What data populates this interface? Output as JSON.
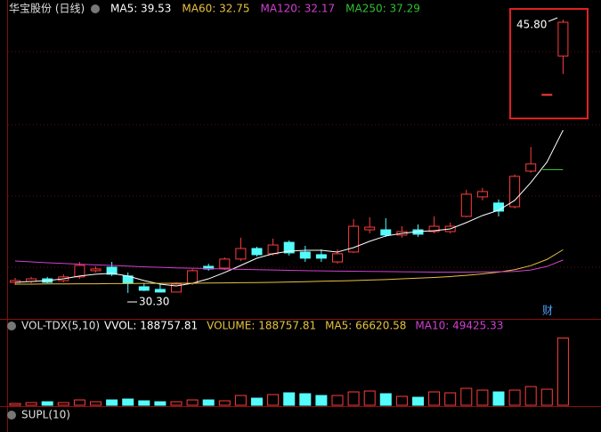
{
  "chart_data": [
    {
      "type": "candlestick",
      "title": "华宝股份 (日线)",
      "up_color": "#ff3c3c",
      "down_color": "#54fcfc",
      "ylim": [
        28.98,
        46.66
      ],
      "open": [
        30.9,
        30.95,
        31.1,
        31.0,
        31.21,
        31.56,
        31.76,
        31.26,
        30.65,
        30.5,
        30.35,
        30.85,
        31.81,
        31.71,
        32.22,
        32.82,
        32.52,
        33.17,
        32.62,
        32.47,
        32.06,
        32.62,
        33.88,
        33.88,
        33.58,
        33.88,
        33.78,
        33.78,
        34.64,
        35.75,
        35.4,
        35.19,
        37.21,
        41.56,
        43.73
      ],
      "high": [
        31.15,
        31.21,
        31.21,
        31.36,
        32.06,
        31.81,
        32.06,
        31.46,
        30.85,
        30.85,
        30.9,
        31.66,
        31.96,
        32.32,
        33.43,
        32.92,
        33.38,
        33.28,
        32.97,
        32.77,
        32.77,
        34.49,
        34.59,
        34.54,
        34.08,
        34.18,
        34.64,
        34.29,
        36.15,
        36.26,
        35.6,
        37.01,
        38.58,
        41.56,
        45.8
      ],
      "low": [
        30.75,
        30.85,
        30.85,
        30.9,
        31.1,
        31.46,
        31.26,
        30.3,
        30.4,
        30.32,
        30.33,
        30.75,
        31.56,
        31.61,
        32.11,
        32.37,
        32.42,
        32.42,
        32.06,
        32.06,
        31.96,
        32.57,
        33.68,
        33.48,
        33.43,
        33.48,
        33.68,
        33.68,
        34.59,
        35.55,
        34.64,
        35.09,
        37.11,
        41.56,
        42.72
      ],
      "close": [
        31.0,
        31.1,
        30.9,
        31.21,
        31.86,
        31.66,
        31.36,
        30.85,
        30.45,
        30.35,
        30.8,
        31.56,
        31.66,
        32.22,
        32.82,
        32.47,
        33.02,
        32.57,
        32.27,
        32.27,
        32.52,
        34.08,
        34.03,
        33.58,
        33.78,
        33.63,
        34.08,
        34.08,
        35.9,
        36.05,
        34.94,
        36.91,
        37.62,
        41.56,
        45.65
      ],
      "lines": [
        {
          "name": "MA5: 39.53",
          "color": "#ffffff",
          "values": [
            30.9,
            30.95,
            31.0,
            31.1,
            31.26,
            31.36,
            31.41,
            31.26,
            31.0,
            30.8,
            30.7,
            30.85,
            31.1,
            31.46,
            31.86,
            32.27,
            32.52,
            32.67,
            32.72,
            32.72,
            32.62,
            32.87,
            33.23,
            33.53,
            33.68,
            33.78,
            33.83,
            33.93,
            34.29,
            34.69,
            34.99,
            35.55,
            36.56,
            37.72,
            39.53
          ]
        },
        {
          "name": "MA60: 32.75",
          "color": "#e8c23f",
          "values": [
            30.8,
            30.8,
            30.81,
            30.81,
            30.82,
            30.82,
            30.83,
            30.83,
            30.84,
            30.84,
            30.85,
            30.85,
            30.86,
            30.87,
            30.88,
            30.89,
            30.9,
            30.92,
            30.94,
            30.96,
            30.98,
            31.0,
            31.03,
            31.06,
            31.1,
            31.14,
            31.18,
            31.23,
            31.3,
            31.38,
            31.48,
            31.62,
            31.85,
            32.2,
            32.75
          ]
        },
        {
          "name": "MA120: 32.17",
          "color": "#d040d0",
          "values": [
            32.11,
            32.06,
            32.01,
            31.97,
            31.93,
            31.89,
            31.86,
            31.82,
            31.78,
            31.75,
            31.72,
            31.7,
            31.68,
            31.66,
            31.64,
            31.62,
            31.6,
            31.58,
            31.56,
            31.55,
            31.54,
            31.53,
            31.52,
            31.51,
            31.5,
            31.49,
            31.48,
            31.48,
            31.48,
            31.49,
            31.5,
            31.52,
            31.6,
            31.8,
            32.17
          ]
        },
        {
          "name": "MA250: 37.29",
          "color": "#30c030",
          "values": [
            null,
            null,
            null,
            null,
            null,
            null,
            null,
            null,
            null,
            null,
            null,
            null,
            null,
            null,
            null,
            null,
            null,
            null,
            null,
            null,
            null,
            null,
            null,
            null,
            null,
            null,
            null,
            null,
            null,
            null,
            null,
            null,
            null,
            37.29,
            37.29
          ]
        }
      ],
      "max_label": "45.80",
      "min_label": "30.30",
      "marker": "财"
    },
    {
      "type": "bar",
      "title": "VOL-TDX(5,10)",
      "ylim": [
        0,
        200000
      ],
      "legend": [
        {
          "name": "VVOL: 188757.81",
          "color": "#ffffff"
        },
        {
          "name": "VOLUME: 188757.81",
          "color": "#e8c23f"
        },
        {
          "name": "MA5: 66620.58",
          "color": "#e8c23f"
        },
        {
          "name": "MA10: 49425.33",
          "color": "#d040d0"
        }
      ],
      "values": [
        5000,
        7500,
        10000,
        7500,
        15000,
        10000,
        15000,
        17500,
        12500,
        10000,
        10000,
        15000,
        15000,
        12500,
        27500,
        20000,
        30000,
        35000,
        32500,
        27500,
        27500,
        37500,
        40000,
        32500,
        25000,
        22500,
        37500,
        35000,
        47500,
        42500,
        37500,
        42500,
        52500,
        45000,
        188757.81
      ]
    },
    {
      "type": "indicator",
      "title": "SUPL(10)"
    }
  ]
}
